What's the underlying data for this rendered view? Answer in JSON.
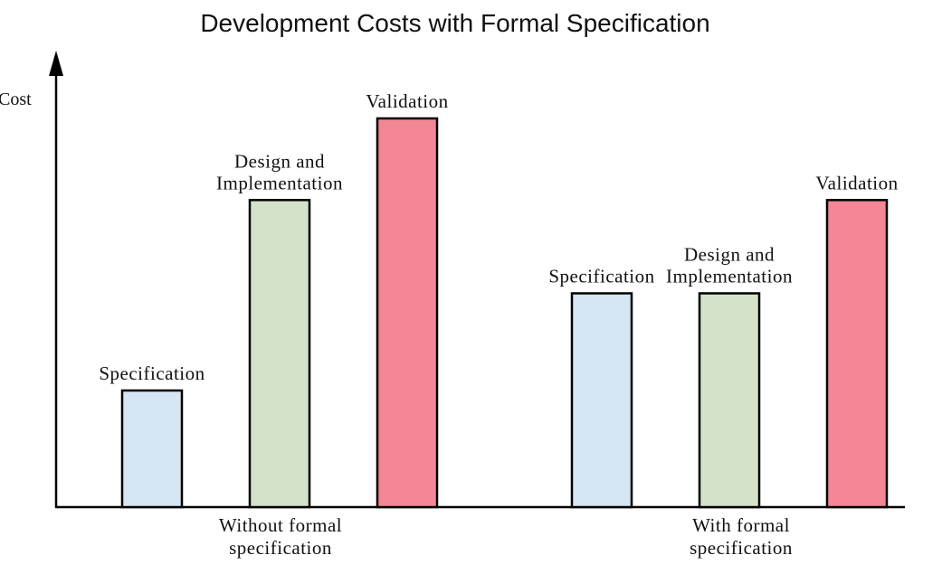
{
  "chart_data": {
    "type": "bar",
    "title": "Development Costs with Formal Specification",
    "ylabel": "Cost",
    "xlabel": "",
    "ylim": [
      0,
      10
    ],
    "grid": false,
    "legend": "none",
    "groups": [
      {
        "label_lines": [
          "Without formal",
          "specification"
        ],
        "bars": [
          {
            "label_lines": [
              "Specification"
            ],
            "value": 3.0,
            "color": "#d6e6f2"
          },
          {
            "label_lines": [
              "Design and",
              "Implementation"
            ],
            "value": 7.9,
            "color": "#d4e2ca"
          },
          {
            "label_lines": [
              "Validation"
            ],
            "value": 10.0,
            "color": "#f38795"
          }
        ]
      },
      {
        "label_lines": [
          "With formal",
          "specification"
        ],
        "bars": [
          {
            "label_lines": [
              "Specification"
            ],
            "value": 5.5,
            "color": "#d6e6f2"
          },
          {
            "label_lines": [
              "Design and",
              "Implementation"
            ],
            "value": 5.5,
            "color": "#d4e2ca"
          },
          {
            "label_lines": [
              "Validation"
            ],
            "value": 7.9,
            "color": "#f38795"
          }
        ]
      }
    ]
  }
}
